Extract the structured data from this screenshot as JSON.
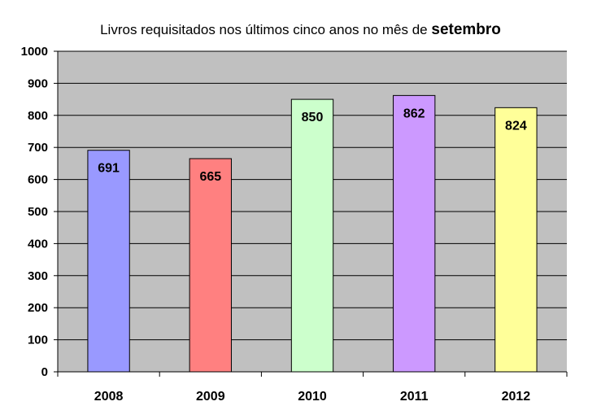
{
  "chart_data": {
    "type": "bar",
    "title": {
      "main": "Livros requisitados nos últimos cinco anos no mês de",
      "emphasis": "setembro"
    },
    "categories": [
      "2008",
      "2009",
      "2010",
      "2011",
      "2012"
    ],
    "values": [
      691,
      665,
      850,
      862,
      824
    ],
    "data_labels": [
      "691",
      "665",
      "850",
      "862",
      "824"
    ],
    "bar_colors": [
      "#9999FF",
      "#FF8080",
      "#CCFFCC",
      "#CC99FF",
      "#FFFF99"
    ],
    "plot_background": "#C0C0C0",
    "ylim": [
      0,
      1000
    ],
    "yticks": [
      0,
      100,
      200,
      300,
      400,
      500,
      600,
      700,
      800,
      900,
      1000
    ],
    "ytick_labels": [
      "0",
      "100",
      "200",
      "300",
      "400",
      "500",
      "600",
      "700",
      "800",
      "900",
      "1000"
    ],
    "grid": true,
    "legend": "none"
  }
}
